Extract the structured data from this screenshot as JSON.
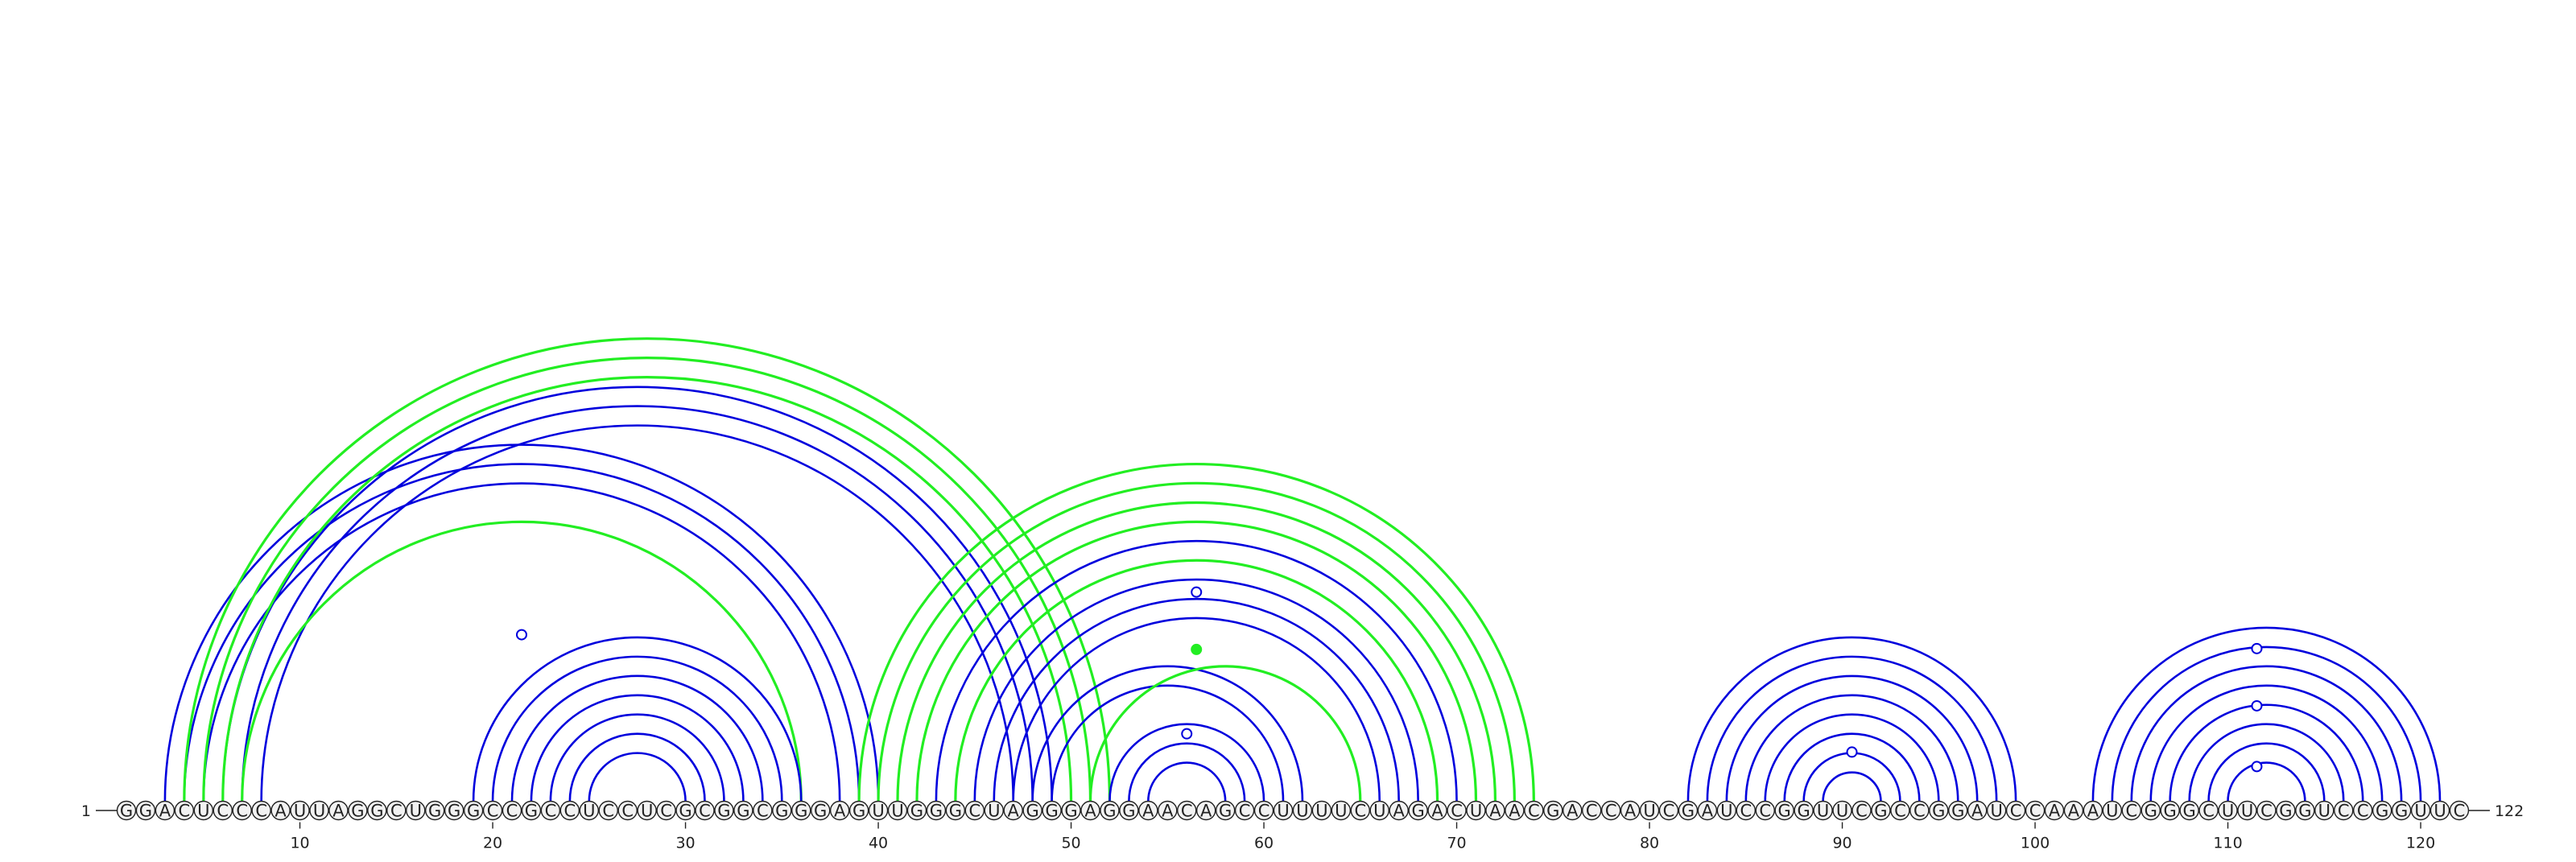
{
  "sequence": "GGACUCCCAUUAGGCUGGGCCGCCUCCUCGCGGCGGGAGUUGGGCUAGGGAGGAACAGCCUUUUCUAGACUAACGACCAUCGAUCCGGUUCGCCGGAUCCAAAUCGGGCUUCGGUCCGGUUC",
  "start_label": "1",
  "end_label": "122",
  "tick_labels": [
    "10",
    "20",
    "30",
    "40",
    "50",
    "60",
    "70",
    "80",
    "90",
    "100",
    "110",
    "120"
  ],
  "colors": {
    "blue_arcs": "#0000dd",
    "green_arcs": "#22ee22",
    "nucleotide_fill": "#f2f2f2",
    "nucleotide_stroke": "#222222"
  },
  "arc_groups": [
    {
      "color": "blue",
      "pairs": [
        [
          3,
          40
        ],
        [
          4,
          39
        ],
        [
          5,
          38
        ]
      ]
    },
    {
      "color": "blue",
      "pairs": [
        [
          6,
          49
        ],
        [
          7,
          48
        ],
        [
          8,
          47
        ]
      ]
    },
    {
      "color": "green",
      "pairs": [
        [
          4,
          52
        ],
        [
          5,
          51
        ],
        [
          6,
          50
        ]
      ]
    },
    {
      "color": "green",
      "pairs": [
        [
          7,
          36
        ]
      ]
    },
    {
      "color": "blue",
      "pairs": [
        [
          19,
          36
        ],
        [
          20,
          35
        ],
        [
          21,
          34
        ],
        [
          22,
          33
        ],
        [
          23,
          32
        ],
        [
          24,
          31
        ],
        [
          25,
          30
        ]
      ]
    },
    {
      "color": "green",
      "pairs": [
        [
          39,
          74
        ],
        [
          40,
          73
        ],
        [
          41,
          72
        ],
        [
          42,
          71
        ],
        [
          44,
          69
        ]
      ]
    },
    {
      "color": "blue",
      "pairs": [
        [
          43,
          70
        ],
        [
          45,
          68
        ],
        [
          46,
          67
        ],
        [
          47,
          66
        ],
        [
          48,
          62
        ],
        [
          49,
          61
        ]
      ]
    },
    {
      "color": "green",
      "pairs": [
        [
          51,
          65
        ]
      ]
    },
    {
      "color": "blue",
      "pairs": [
        [
          52,
          60
        ],
        [
          53,
          59
        ],
        [
          54,
          58
        ]
      ]
    },
    {
      "color": "blue",
      "pairs": [
        [
          82,
          99
        ],
        [
          83,
          98
        ],
        [
          84,
          97
        ],
        [
          85,
          96
        ],
        [
          86,
          95
        ],
        [
          87,
          94
        ],
        [
          88,
          93
        ],
        [
          89,
          92
        ]
      ]
    },
    {
      "color": "blue",
      "pairs": [
        [
          103,
          121
        ],
        [
          104,
          120
        ],
        [
          105,
          119
        ],
        [
          106,
          118
        ],
        [
          107,
          117
        ],
        [
          108,
          116
        ],
        [
          109,
          115
        ],
        [
          110,
          114
        ]
      ]
    }
  ],
  "markers": [
    {
      "pos": 21.5,
      "level": 0.36,
      "color": "blue",
      "filled": false
    },
    {
      "pos": 56.5,
      "level": 0.62,
      "color": "blue",
      "filled": false
    },
    {
      "pos": 56.5,
      "level": 0.45,
      "color": "green",
      "filled": true
    },
    {
      "pos": 56.0,
      "level": 0.2,
      "color": "blue",
      "filled": false
    },
    {
      "pos": 90.5,
      "level": 0.3,
      "color": "blue",
      "filled": false
    },
    {
      "pos": 111.5,
      "level": 0.2,
      "color": "blue",
      "filled": false
    },
    {
      "pos": 111.5,
      "level": 0.55,
      "color": "blue",
      "filled": false
    },
    {
      "pos": 111.5,
      "level": 0.88,
      "color": "blue",
      "filled": false
    }
  ]
}
